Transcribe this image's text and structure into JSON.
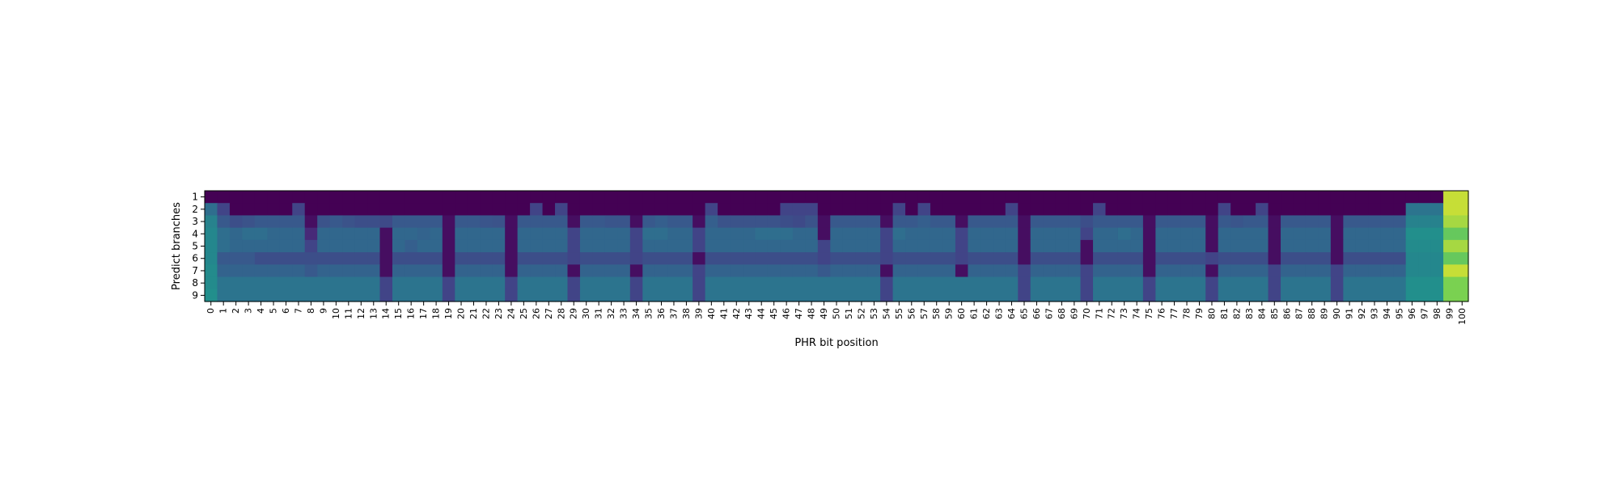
{
  "chart_data": {
    "type": "heatmap",
    "title": "",
    "xlabel": "PHR bit position",
    "ylabel": "Predict branches",
    "x_categories": [
      0,
      1,
      2,
      3,
      4,
      5,
      6,
      7,
      8,
      9,
      10,
      11,
      12,
      13,
      14,
      15,
      16,
      17,
      18,
      19,
      20,
      21,
      22,
      23,
      24,
      25,
      26,
      27,
      28,
      29,
      30,
      31,
      32,
      33,
      34,
      35,
      36,
      37,
      38,
      39,
      40,
      41,
      42,
      43,
      44,
      45,
      46,
      47,
      48,
      49,
      50,
      51,
      52,
      53,
      54,
      55,
      56,
      57,
      58,
      59,
      60,
      61,
      62,
      63,
      64,
      65,
      66,
      67,
      68,
      69,
      70,
      71,
      72,
      73,
      74,
      75,
      76,
      77,
      78,
      79,
      80,
      81,
      82,
      83,
      84,
      85,
      86,
      87,
      88,
      89,
      90,
      91,
      92,
      93,
      94,
      95,
      96,
      97,
      98,
      99,
      100
    ],
    "y_categories": [
      1,
      2,
      3,
      4,
      5,
      6,
      7,
      8,
      9
    ],
    "colormap": "viridis",
    "value_range": [
      0,
      1
    ],
    "x_tick_rotation": 90,
    "colorbar": false,
    "group_columns": [
      0,
      1,
      2,
      3,
      4,
      5,
      6,
      7,
      8,
      14,
      19,
      24,
      29,
      34,
      39,
      40,
      49,
      54,
      60,
      65,
      70,
      75,
      80,
      85,
      90,
      96,
      97,
      98,
      99,
      100
    ],
    "values": [
      [
        0.0,
        0.0,
        0.0,
        0.0,
        0.0,
        0.0,
        0.0,
        0.0,
        0.0,
        0.0,
        0.0,
        0.0,
        0.0,
        0.0,
        0.0,
        0.0,
        0.0,
        0.0,
        0.0,
        0.0,
        0.0,
        0.0,
        0.0,
        0.0,
        0.0,
        0.0,
        0.0,
        0.0,
        0.0,
        0.0,
        0.0,
        0.0,
        0.0,
        0.0,
        0.0,
        0.0,
        0.0,
        0.0,
        0.0,
        0.0,
        0.0,
        0.0,
        0.0,
        0.0,
        0.0,
        0.0,
        0.0,
        0.0,
        0.0,
        0.0,
        0.0,
        0.0,
        0.0,
        0.0,
        0.0,
        0.0,
        0.0,
        0.0,
        0.0,
        0.0,
        0.0,
        0.0,
        0.0,
        0.0,
        0.0,
        0.0,
        0.0,
        0.0,
        0.0,
        0.0,
        0.0,
        0.0,
        0.0,
        0.0,
        0.0,
        0.0,
        0.0,
        0.0,
        0.0,
        0.0,
        0.0,
        0.0,
        0.0,
        0.0,
        0.0,
        0.0,
        0.0,
        0.0,
        0.0,
        0.0,
        0.0,
        0.0,
        0.0,
        0.0,
        0.0,
        0.0,
        0.0,
        0.0,
        0.0,
        0.95,
        0.95
      ],
      [
        0.45,
        0.25,
        0.0,
        0.0,
        0.0,
        0.0,
        0.0,
        0.25,
        0.0,
        0.0,
        0.0,
        0.0,
        0.0,
        0.0,
        0.0,
        0.0,
        0.0,
        0.0,
        0.0,
        0.0,
        0.0,
        0.0,
        0.0,
        0.0,
        0.0,
        0.0,
        0.25,
        0.0,
        0.25,
        0.0,
        0.0,
        0.0,
        0.0,
        0.0,
        0.0,
        0.0,
        0.0,
        0.0,
        0.0,
        0.0,
        0.25,
        0.0,
        0.0,
        0.0,
        0.0,
        0.0,
        0.25,
        0.25,
        0.25,
        0.0,
        0.0,
        0.0,
        0.0,
        0.0,
        0.0,
        0.25,
        0.0,
        0.25,
        0.0,
        0.0,
        0.0,
        0.0,
        0.0,
        0.0,
        0.25,
        0.0,
        0.0,
        0.0,
        0.0,
        0.0,
        0.0,
        0.25,
        0.0,
        0.0,
        0.0,
        0.0,
        0.0,
        0.0,
        0.0,
        0.0,
        0.0,
        0.25,
        0.0,
        0.0,
        0.25,
        0.0,
        0.0,
        0.0,
        0.0,
        0.0,
        0.0,
        0.0,
        0.0,
        0.0,
        0.0,
        0.0,
        0.48,
        0.48,
        0.48,
        0.95,
        0.95
      ],
      [
        0.55,
        0.35,
        0.3,
        0.32,
        0.35,
        0.35,
        0.35,
        0.35,
        0.05,
        0.32,
        0.35,
        0.32,
        0.3,
        0.3,
        0.28,
        0.35,
        0.35,
        0.35,
        0.35,
        0.05,
        0.35,
        0.35,
        0.33,
        0.32,
        0.05,
        0.35,
        0.35,
        0.35,
        0.35,
        0.05,
        0.35,
        0.35,
        0.33,
        0.33,
        0.05,
        0.35,
        0.38,
        0.35,
        0.35,
        0.05,
        0.38,
        0.32,
        0.32,
        0.32,
        0.32,
        0.32,
        0.3,
        0.28,
        0.32,
        0.05,
        0.35,
        0.35,
        0.35,
        0.35,
        0.05,
        0.35,
        0.35,
        0.38,
        0.35,
        0.35,
        0.05,
        0.35,
        0.35,
        0.35,
        0.35,
        0.05,
        0.35,
        0.35,
        0.35,
        0.35,
        0.3,
        0.35,
        0.35,
        0.35,
        0.35,
        0.05,
        0.35,
        0.35,
        0.35,
        0.35,
        0.05,
        0.35,
        0.33,
        0.35,
        0.35,
        0.05,
        0.35,
        0.35,
        0.35,
        0.35,
        0.05,
        0.35,
        0.35,
        0.35,
        0.35,
        0.35,
        0.55,
        0.55,
        0.55,
        0.92,
        0.92
      ],
      [
        0.58,
        0.45,
        0.42,
        0.45,
        0.45,
        0.42,
        0.42,
        0.42,
        0.15,
        0.42,
        0.42,
        0.42,
        0.42,
        0.42,
        0.05,
        0.42,
        0.42,
        0.4,
        0.42,
        0.05,
        0.42,
        0.42,
        0.42,
        0.42,
        0.05,
        0.42,
        0.42,
        0.42,
        0.42,
        0.25,
        0.42,
        0.42,
        0.42,
        0.42,
        0.25,
        0.45,
        0.45,
        0.42,
        0.42,
        0.25,
        0.42,
        0.42,
        0.42,
        0.42,
        0.45,
        0.45,
        0.45,
        0.42,
        0.42,
        0.05,
        0.42,
        0.42,
        0.42,
        0.42,
        0.25,
        0.45,
        0.42,
        0.42,
        0.42,
        0.42,
        0.25,
        0.42,
        0.42,
        0.42,
        0.42,
        0.05,
        0.42,
        0.42,
        0.42,
        0.42,
        0.25,
        0.42,
        0.42,
        0.45,
        0.42,
        0.05,
        0.42,
        0.42,
        0.42,
        0.42,
        0.05,
        0.42,
        0.42,
        0.42,
        0.42,
        0.05,
        0.42,
        0.42,
        0.42,
        0.42,
        0.05,
        0.42,
        0.42,
        0.42,
        0.42,
        0.42,
        0.62,
        0.62,
        0.62,
        0.85,
        0.85
      ],
      [
        0.58,
        0.45,
        0.42,
        0.42,
        0.42,
        0.42,
        0.42,
        0.42,
        0.25,
        0.42,
        0.42,
        0.42,
        0.42,
        0.42,
        0.05,
        0.42,
        0.38,
        0.42,
        0.42,
        0.05,
        0.42,
        0.42,
        0.42,
        0.42,
        0.05,
        0.42,
        0.42,
        0.42,
        0.42,
        0.25,
        0.42,
        0.42,
        0.42,
        0.42,
        0.25,
        0.42,
        0.42,
        0.42,
        0.42,
        0.25,
        0.42,
        0.42,
        0.42,
        0.42,
        0.42,
        0.42,
        0.42,
        0.42,
        0.42,
        0.25,
        0.42,
        0.42,
        0.42,
        0.42,
        0.25,
        0.42,
        0.42,
        0.42,
        0.42,
        0.42,
        0.25,
        0.42,
        0.42,
        0.42,
        0.42,
        0.05,
        0.42,
        0.42,
        0.42,
        0.42,
        0.05,
        0.42,
        0.42,
        0.42,
        0.42,
        0.05,
        0.42,
        0.42,
        0.42,
        0.42,
        0.05,
        0.42,
        0.42,
        0.42,
        0.42,
        0.05,
        0.42,
        0.42,
        0.42,
        0.42,
        0.05,
        0.42,
        0.42,
        0.42,
        0.42,
        0.42,
        0.6,
        0.6,
        0.6,
        0.92,
        0.92
      ],
      [
        0.58,
        0.35,
        0.35,
        0.35,
        0.3,
        0.3,
        0.3,
        0.3,
        0.3,
        0.3,
        0.3,
        0.3,
        0.3,
        0.3,
        0.05,
        0.3,
        0.3,
        0.3,
        0.3,
        0.05,
        0.3,
        0.3,
        0.3,
        0.3,
        0.05,
        0.3,
        0.3,
        0.3,
        0.3,
        0.25,
        0.3,
        0.3,
        0.3,
        0.3,
        0.25,
        0.3,
        0.3,
        0.3,
        0.3,
        0.05,
        0.3,
        0.3,
        0.3,
        0.3,
        0.3,
        0.3,
        0.3,
        0.3,
        0.3,
        0.25,
        0.3,
        0.3,
        0.3,
        0.3,
        0.25,
        0.3,
        0.3,
        0.3,
        0.3,
        0.3,
        0.25,
        0.3,
        0.3,
        0.3,
        0.3,
        0.05,
        0.3,
        0.3,
        0.3,
        0.3,
        0.05,
        0.3,
        0.3,
        0.3,
        0.3,
        0.05,
        0.3,
        0.3,
        0.3,
        0.3,
        0.25,
        0.3,
        0.3,
        0.3,
        0.3,
        0.05,
        0.3,
        0.3,
        0.3,
        0.3,
        0.05,
        0.3,
        0.3,
        0.3,
        0.3,
        0.3,
        0.58,
        0.58,
        0.58,
        0.85,
        0.85
      ],
      [
        0.6,
        0.4,
        0.4,
        0.4,
        0.4,
        0.4,
        0.4,
        0.4,
        0.35,
        0.4,
        0.4,
        0.4,
        0.4,
        0.4,
        0.05,
        0.4,
        0.4,
        0.4,
        0.4,
        0.05,
        0.4,
        0.4,
        0.4,
        0.4,
        0.05,
        0.4,
        0.4,
        0.4,
        0.4,
        0.05,
        0.4,
        0.4,
        0.4,
        0.4,
        0.05,
        0.4,
        0.4,
        0.4,
        0.4,
        0.25,
        0.4,
        0.4,
        0.4,
        0.4,
        0.4,
        0.4,
        0.4,
        0.4,
        0.4,
        0.35,
        0.4,
        0.4,
        0.4,
        0.4,
        0.05,
        0.4,
        0.4,
        0.4,
        0.4,
        0.4,
        0.05,
        0.4,
        0.4,
        0.4,
        0.4,
        0.25,
        0.4,
        0.4,
        0.4,
        0.4,
        0.25,
        0.4,
        0.4,
        0.4,
        0.4,
        0.05,
        0.4,
        0.4,
        0.4,
        0.4,
        0.05,
        0.4,
        0.4,
        0.4,
        0.4,
        0.25,
        0.4,
        0.4,
        0.4,
        0.4,
        0.25,
        0.4,
        0.4,
        0.4,
        0.4,
        0.4,
        0.58,
        0.58,
        0.58,
        0.95,
        0.95
      ],
      [
        0.6,
        0.48,
        0.48,
        0.48,
        0.48,
        0.48,
        0.48,
        0.48,
        0.48,
        0.48,
        0.48,
        0.48,
        0.48,
        0.48,
        0.25,
        0.48,
        0.48,
        0.48,
        0.48,
        0.25,
        0.48,
        0.48,
        0.48,
        0.48,
        0.25,
        0.48,
        0.48,
        0.48,
        0.48,
        0.25,
        0.48,
        0.48,
        0.48,
        0.48,
        0.25,
        0.48,
        0.48,
        0.48,
        0.48,
        0.25,
        0.48,
        0.48,
        0.48,
        0.48,
        0.48,
        0.48,
        0.48,
        0.48,
        0.48,
        0.48,
        0.48,
        0.48,
        0.48,
        0.48,
        0.25,
        0.48,
        0.48,
        0.48,
        0.48,
        0.48,
        0.48,
        0.48,
        0.48,
        0.48,
        0.48,
        0.25,
        0.48,
        0.48,
        0.48,
        0.48,
        0.25,
        0.48,
        0.48,
        0.48,
        0.48,
        0.25,
        0.48,
        0.48,
        0.48,
        0.48,
        0.25,
        0.48,
        0.48,
        0.48,
        0.48,
        0.25,
        0.48,
        0.48,
        0.48,
        0.48,
        0.25,
        0.48,
        0.48,
        0.48,
        0.48,
        0.48,
        0.62,
        0.62,
        0.62,
        0.88,
        0.88
      ],
      [
        0.62,
        0.48,
        0.48,
        0.48,
        0.48,
        0.48,
        0.48,
        0.48,
        0.48,
        0.48,
        0.48,
        0.48,
        0.48,
        0.48,
        0.25,
        0.48,
        0.48,
        0.48,
        0.48,
        0.25,
        0.48,
        0.48,
        0.48,
        0.48,
        0.25,
        0.48,
        0.48,
        0.48,
        0.48,
        0.25,
        0.48,
        0.48,
        0.48,
        0.48,
        0.25,
        0.48,
        0.48,
        0.48,
        0.48,
        0.25,
        0.48,
        0.48,
        0.48,
        0.48,
        0.48,
        0.48,
        0.48,
        0.48,
        0.48,
        0.48,
        0.48,
        0.48,
        0.48,
        0.48,
        0.25,
        0.48,
        0.48,
        0.48,
        0.48,
        0.48,
        0.48,
        0.48,
        0.48,
        0.48,
        0.48,
        0.25,
        0.48,
        0.48,
        0.48,
        0.48,
        0.25,
        0.48,
        0.48,
        0.48,
        0.48,
        0.25,
        0.48,
        0.48,
        0.48,
        0.48,
        0.25,
        0.48,
        0.48,
        0.48,
        0.48,
        0.25,
        0.48,
        0.48,
        0.48,
        0.48,
        0.25,
        0.48,
        0.48,
        0.48,
        0.48,
        0.48,
        0.62,
        0.62,
        0.62,
        0.88,
        0.88
      ]
    ]
  }
}
